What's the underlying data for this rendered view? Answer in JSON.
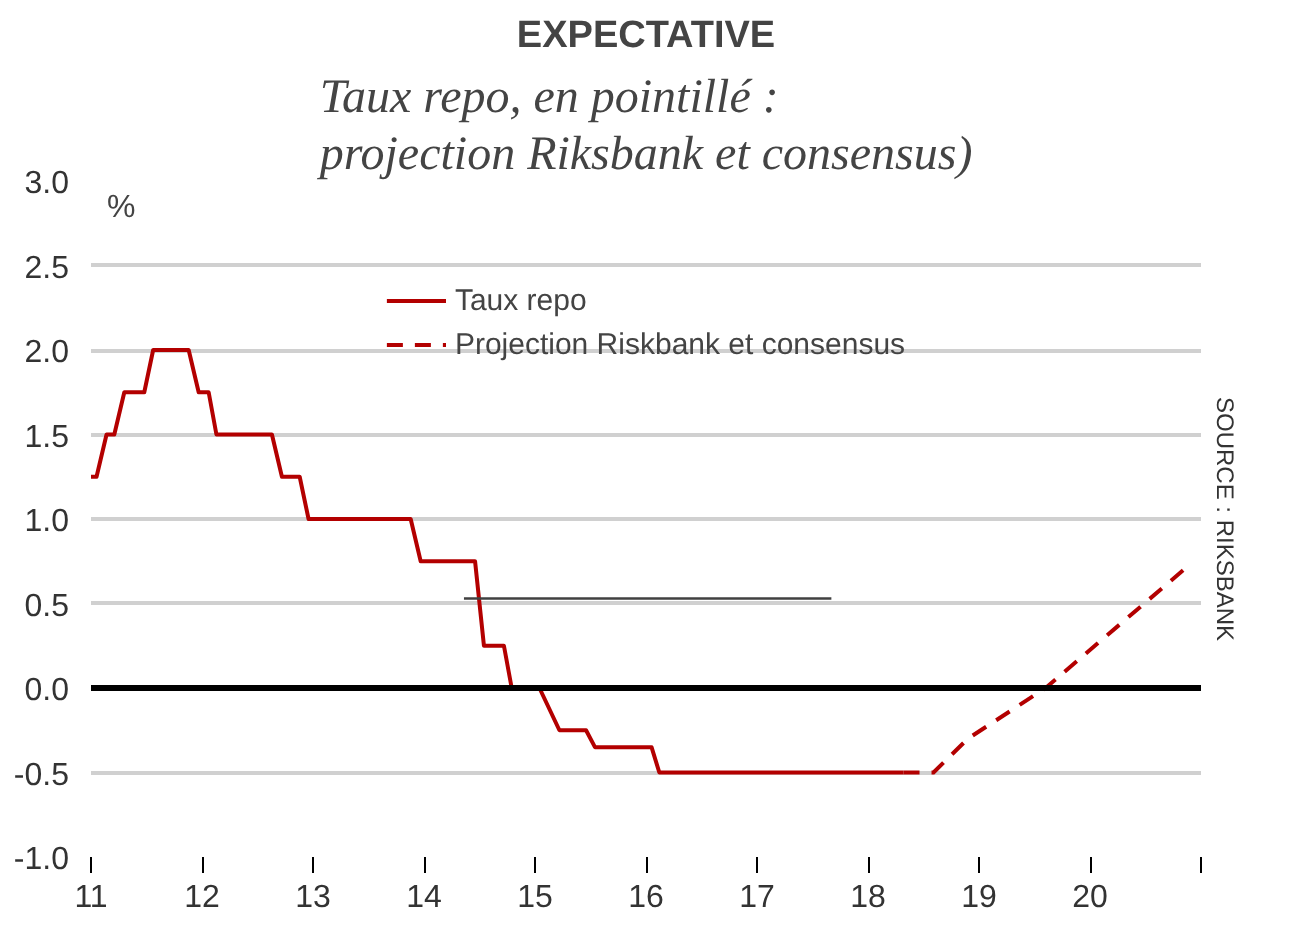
{
  "chart_data": {
    "type": "line",
    "title": "EXPECTATIVE",
    "subtitle": "Taux repo, en pointillé : projection Riksbank et consensus)",
    "ylabel": "%",
    "annotations": [
      "SOURCE : RIKSBANK"
    ],
    "xlim": [
      11,
      21
    ],
    "ylim": [
      -1,
      3
    ],
    "xticks": [
      11,
      12,
      13,
      14,
      15,
      16,
      17,
      18,
      19,
      20,
      {
        "value": 21,
        "label": null
      }
    ],
    "yticks": [
      {
        "value": -1,
        "label": "-1.0"
      },
      {
        "value": -0.5,
        "label": "-0.5"
      },
      {
        "value": 0,
        "label": "0.0"
      },
      {
        "value": 0.5,
        "label": "0.5"
      },
      {
        "value": 1,
        "label": "1.0"
      },
      {
        "value": 1.5,
        "label": "1.5"
      },
      {
        "value": 2,
        "label": "2.0"
      },
      {
        "value": 2.5,
        "label": "2.5"
      },
      {
        "value": 3,
        "label": "3.0"
      }
    ],
    "grid": "y",
    "legend": "top",
    "marker": "none",
    "ref_lines": [
      {
        "axis": "y",
        "value": 0,
        "label": null,
        "color": "#000000"
      }
    ],
    "series": [
      {
        "name": "Taux repo",
        "color": "#b30000",
        "line_style": "solid",
        "x": [
          11.0,
          11.05,
          11.14,
          11.21,
          11.3,
          11.48,
          11.56,
          11.88,
          11.97,
          12.06,
          12.13,
          12.63,
          12.72,
          12.88,
          12.96,
          13.88,
          13.97,
          14.46,
          14.54,
          14.72,
          14.79,
          15.04,
          15.22,
          15.46,
          15.54,
          16.05,
          16.12,
          18.32
        ],
        "values": [
          1.25,
          1.25,
          1.5,
          1.5,
          1.75,
          1.75,
          2.0,
          2.0,
          1.75,
          1.75,
          1.5,
          1.5,
          1.25,
          1.25,
          1.0,
          1.0,
          0.75,
          0.75,
          0.25,
          0.25,
          0.0,
          0.0,
          -0.25,
          -0.25,
          -0.35,
          -0.35,
          -0.5,
          -0.5
        ]
      },
      {
        "name": "Projection Riskbank et consensus",
        "color": "#b30000",
        "line_style": "dashed",
        "x": [
          18.32,
          18.59,
          18.9,
          19.6,
          20.88
        ],
        "values": [
          -0.5,
          -0.5,
          -0.3,
          0.0,
          0.72
        ]
      },
      {
        "color": "#404040",
        "line_style": "solid",
        "x": [
          14.36,
          17.67
        ],
        "values": [
          0.53,
          0.53
        ]
      }
    ]
  }
}
